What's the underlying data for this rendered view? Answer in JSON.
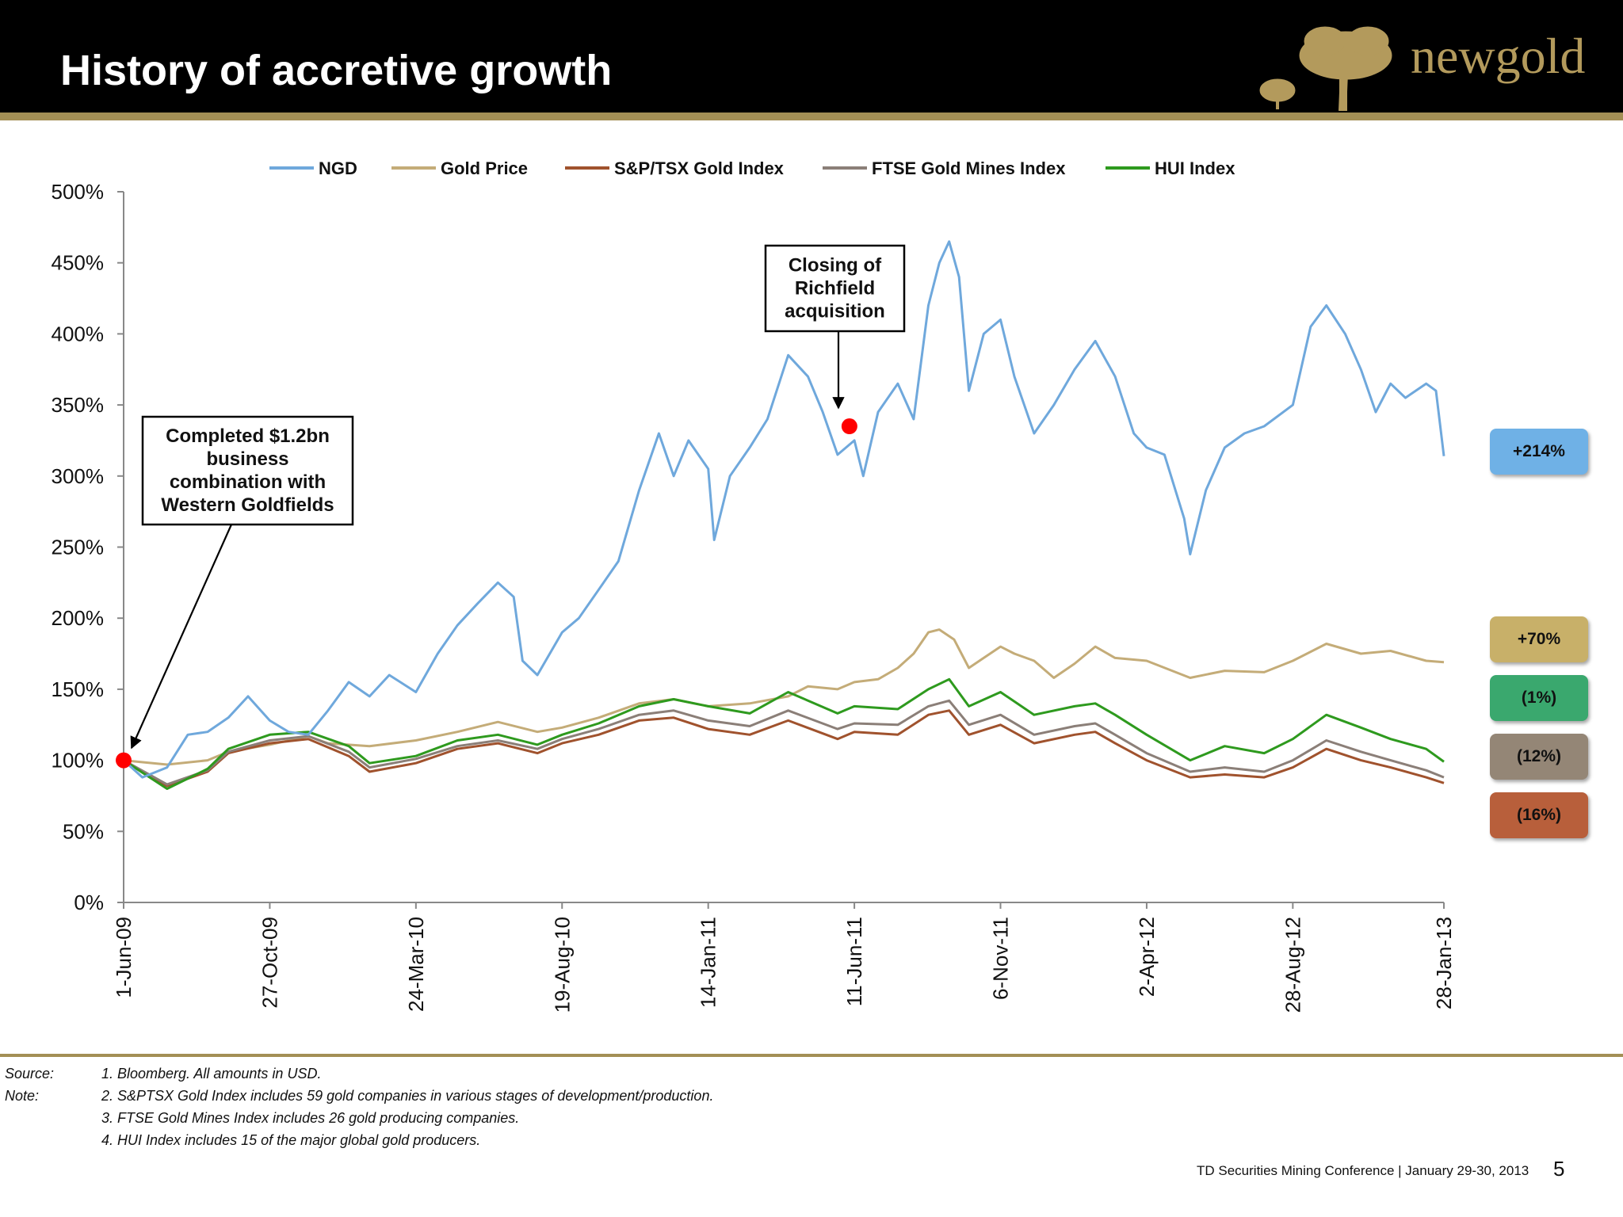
{
  "slide": {
    "title": "History of accretive growth",
    "logo_text": "newgold",
    "conference": "TD Securities Mining Conference  |  January 29-30, 2013",
    "page_number": "5"
  },
  "footnotes": {
    "source_label": "Source:",
    "note_label": "Note:",
    "items": [
      "1. Bloomberg. All amounts in USD.",
      "2. S&PTSX Gold Index includes 59 gold companies in various stages of development/production.",
      "3. FTSE Gold Mines Index includes 26 gold producing companies.",
      "4. HUI Index includes 15 of the major global gold producers."
    ]
  },
  "colors": {
    "header_bg": "#000000",
    "gold_rule": "#a38f55",
    "logo_gold": "#b39a5c"
  },
  "chart_data": {
    "type": "line",
    "ylim": [
      0,
      500
    ],
    "yticks": [
      0,
      50,
      100,
      150,
      200,
      250,
      300,
      350,
      400,
      450,
      500
    ],
    "ytick_labels": [
      "0%",
      "50%",
      "100%",
      "150%",
      "200%",
      "250%",
      "300%",
      "350%",
      "400%",
      "450%",
      "500%"
    ],
    "xlim": [
      "2009-06-01",
      "2013-01-28"
    ],
    "xticks": [
      "2009-06-01",
      "2009-10-27",
      "2010-03-24",
      "2010-08-19",
      "2011-01-14",
      "2011-06-11",
      "2011-11-06",
      "2012-04-02",
      "2012-08-28",
      "2013-01-28"
    ],
    "xtick_labels": [
      "1-Jun-09",
      "27-Oct-09",
      "24-Mar-10",
      "19-Aug-10",
      "14-Jan-11",
      "11-Jun-11",
      "6-Nov-11",
      "2-Apr-12",
      "28-Aug-12",
      "28-Jan-13"
    ],
    "legend_position": "top",
    "grid": false,
    "series": [
      {
        "name": "NGD",
        "color": "#6fa8dc",
        "points": [
          [
            "2009-06-01",
            100
          ],
          [
            "2009-06-20",
            88
          ],
          [
            "2009-07-15",
            95
          ],
          [
            "2009-08-05",
            118
          ],
          [
            "2009-08-25",
            120
          ],
          [
            "2009-09-15",
            130
          ],
          [
            "2009-10-05",
            145
          ],
          [
            "2009-10-27",
            128
          ],
          [
            "2009-11-15",
            120
          ],
          [
            "2009-12-05",
            118
          ],
          [
            "2009-12-25",
            135
          ],
          [
            "2010-01-15",
            155
          ],
          [
            "2010-02-05",
            145
          ],
          [
            "2010-02-25",
            160
          ],
          [
            "2010-03-24",
            148
          ],
          [
            "2010-04-15",
            175
          ],
          [
            "2010-05-05",
            195
          ],
          [
            "2010-05-25",
            210
          ],
          [
            "2010-06-15",
            225
          ],
          [
            "2010-07-01",
            215
          ],
          [
            "2010-07-10",
            170
          ],
          [
            "2010-07-25",
            160
          ],
          [
            "2010-08-19",
            190
          ],
          [
            "2010-09-05",
            200
          ],
          [
            "2010-09-25",
            220
          ],
          [
            "2010-10-15",
            240
          ],
          [
            "2010-11-05",
            290
          ],
          [
            "2010-11-25",
            330
          ],
          [
            "2010-12-10",
            300
          ],
          [
            "2010-12-25",
            325
          ],
          [
            "2011-01-14",
            305
          ],
          [
            "2011-01-20",
            255
          ],
          [
            "2011-02-05",
            300
          ],
          [
            "2011-02-25",
            320
          ],
          [
            "2011-03-15",
            340
          ],
          [
            "2011-04-05",
            385
          ],
          [
            "2011-04-25",
            370
          ],
          [
            "2011-05-10",
            345
          ],
          [
            "2011-05-25",
            315
          ],
          [
            "2011-06-11",
            325
          ],
          [
            "2011-06-20",
            300
          ],
          [
            "2011-07-05",
            345
          ],
          [
            "2011-07-25",
            365
          ],
          [
            "2011-08-10",
            340
          ],
          [
            "2011-08-25",
            420
          ],
          [
            "2011-09-05",
            450
          ],
          [
            "2011-09-15",
            465
          ],
          [
            "2011-09-25",
            440
          ],
          [
            "2011-10-05",
            360
          ],
          [
            "2011-10-20",
            400
          ],
          [
            "2011-11-06",
            410
          ],
          [
            "2011-11-20",
            370
          ],
          [
            "2011-12-10",
            330
          ],
          [
            "2011-12-30",
            350
          ],
          [
            "2012-01-20",
            375
          ],
          [
            "2012-02-10",
            395
          ],
          [
            "2012-03-01",
            370
          ],
          [
            "2012-03-20",
            330
          ],
          [
            "2012-04-02",
            320
          ],
          [
            "2012-04-20",
            315
          ],
          [
            "2012-05-10",
            270
          ],
          [
            "2012-05-16",
            245
          ],
          [
            "2012-06-01",
            290
          ],
          [
            "2012-06-20",
            320
          ],
          [
            "2012-07-10",
            330
          ],
          [
            "2012-07-30",
            335
          ],
          [
            "2012-08-28",
            350
          ],
          [
            "2012-09-15",
            405
          ],
          [
            "2012-10-01",
            420
          ],
          [
            "2012-10-20",
            400
          ],
          [
            "2012-11-05",
            375
          ],
          [
            "2012-11-20",
            345
          ],
          [
            "2012-12-05",
            365
          ],
          [
            "2012-12-20",
            355
          ],
          [
            "2013-01-10",
            365
          ],
          [
            "2013-01-20",
            360
          ],
          [
            "2013-01-28",
            314
          ]
        ]
      },
      {
        "name": "Gold Price",
        "color": "#c4ac78",
        "points": [
          [
            "2009-06-01",
            100
          ],
          [
            "2009-07-15",
            97
          ],
          [
            "2009-08-25",
            100
          ],
          [
            "2009-09-15",
            106
          ],
          [
            "2009-10-27",
            111
          ],
          [
            "2009-12-05",
            117
          ],
          [
            "2009-12-25",
            112
          ],
          [
            "2010-02-05",
            110
          ],
          [
            "2010-03-24",
            114
          ],
          [
            "2010-05-05",
            120
          ],
          [
            "2010-06-15",
            127
          ],
          [
            "2010-07-25",
            120
          ],
          [
            "2010-08-19",
            123
          ],
          [
            "2010-09-25",
            130
          ],
          [
            "2010-11-05",
            140
          ],
          [
            "2010-12-10",
            143
          ],
          [
            "2011-01-14",
            138
          ],
          [
            "2011-02-25",
            140
          ],
          [
            "2011-04-05",
            145
          ],
          [
            "2011-04-25",
            152
          ],
          [
            "2011-05-25",
            150
          ],
          [
            "2011-06-11",
            155
          ],
          [
            "2011-07-05",
            157
          ],
          [
            "2011-07-25",
            165
          ],
          [
            "2011-08-10",
            175
          ],
          [
            "2011-08-25",
            190
          ],
          [
            "2011-09-05",
            192
          ],
          [
            "2011-09-20",
            185
          ],
          [
            "2011-10-05",
            165
          ],
          [
            "2011-10-20",
            172
          ],
          [
            "2011-11-06",
            180
          ],
          [
            "2011-11-20",
            175
          ],
          [
            "2011-12-10",
            170
          ],
          [
            "2011-12-30",
            158
          ],
          [
            "2012-01-20",
            168
          ],
          [
            "2012-02-10",
            180
          ],
          [
            "2012-03-01",
            172
          ],
          [
            "2012-04-02",
            170
          ],
          [
            "2012-05-16",
            158
          ],
          [
            "2012-06-20",
            163
          ],
          [
            "2012-07-30",
            162
          ],
          [
            "2012-08-28",
            170
          ],
          [
            "2012-10-01",
            182
          ],
          [
            "2012-11-05",
            175
          ],
          [
            "2012-12-05",
            177
          ],
          [
            "2013-01-10",
            170
          ],
          [
            "2013-01-28",
            169
          ]
        ]
      },
      {
        "name": "S&P/TSX Gold Index",
        "color": "#a0522d",
        "points": [
          [
            "2009-06-01",
            100
          ],
          [
            "2009-07-15",
            82
          ],
          [
            "2009-08-25",
            92
          ],
          [
            "2009-09-15",
            105
          ],
          [
            "2009-10-27",
            112
          ],
          [
            "2009-12-05",
            115
          ],
          [
            "2010-01-15",
            103
          ],
          [
            "2010-02-05",
            92
          ],
          [
            "2010-03-24",
            98
          ],
          [
            "2010-05-05",
            108
          ],
          [
            "2010-06-15",
            112
          ],
          [
            "2010-07-25",
            105
          ],
          [
            "2010-08-19",
            112
          ],
          [
            "2010-09-25",
            118
          ],
          [
            "2010-11-05",
            128
          ],
          [
            "2010-12-10",
            130
          ],
          [
            "2011-01-14",
            122
          ],
          [
            "2011-02-25",
            118
          ],
          [
            "2011-04-05",
            128
          ],
          [
            "2011-05-25",
            115
          ],
          [
            "2011-06-11",
            120
          ],
          [
            "2011-07-25",
            118
          ],
          [
            "2011-08-25",
            132
          ],
          [
            "2011-09-15",
            135
          ],
          [
            "2011-10-05",
            118
          ],
          [
            "2011-11-06",
            125
          ],
          [
            "2011-12-10",
            112
          ],
          [
            "2012-01-20",
            118
          ],
          [
            "2012-02-10",
            120
          ],
          [
            "2012-03-01",
            112
          ],
          [
            "2012-04-02",
            100
          ],
          [
            "2012-05-16",
            88
          ],
          [
            "2012-06-20",
            90
          ],
          [
            "2012-07-30",
            88
          ],
          [
            "2012-08-28",
            95
          ],
          [
            "2012-10-01",
            108
          ],
          [
            "2012-11-05",
            100
          ],
          [
            "2012-12-05",
            95
          ],
          [
            "2013-01-10",
            88
          ],
          [
            "2013-01-28",
            84
          ]
        ]
      },
      {
        "name": "FTSE Gold Mines Index",
        "color": "#8b7f78",
        "points": [
          [
            "2009-06-01",
            100
          ],
          [
            "2009-07-15",
            83
          ],
          [
            "2009-08-25",
            93
          ],
          [
            "2009-09-15",
            106
          ],
          [
            "2009-10-27",
            114
          ],
          [
            "2009-12-05",
            117
          ],
          [
            "2010-01-15",
            106
          ],
          [
            "2010-02-05",
            95
          ],
          [
            "2010-03-24",
            101
          ],
          [
            "2010-05-05",
            110
          ],
          [
            "2010-06-15",
            114
          ],
          [
            "2010-07-25",
            108
          ],
          [
            "2010-08-19",
            115
          ],
          [
            "2010-09-25",
            122
          ],
          [
            "2010-11-05",
            132
          ],
          [
            "2010-12-10",
            135
          ],
          [
            "2011-01-14",
            128
          ],
          [
            "2011-02-25",
            124
          ],
          [
            "2011-04-05",
            135
          ],
          [
            "2011-05-25",
            122
          ],
          [
            "2011-06-11",
            126
          ],
          [
            "2011-07-25",
            125
          ],
          [
            "2011-08-25",
            138
          ],
          [
            "2011-09-15",
            142
          ],
          [
            "2011-10-05",
            125
          ],
          [
            "2011-11-06",
            132
          ],
          [
            "2011-12-10",
            118
          ],
          [
            "2012-01-20",
            124
          ],
          [
            "2012-02-10",
            126
          ],
          [
            "2012-03-01",
            118
          ],
          [
            "2012-04-02",
            105
          ],
          [
            "2012-05-16",
            92
          ],
          [
            "2012-06-20",
            95
          ],
          [
            "2012-07-30",
            92
          ],
          [
            "2012-08-28",
            100
          ],
          [
            "2012-10-01",
            114
          ],
          [
            "2012-11-05",
            106
          ],
          [
            "2012-12-05",
            100
          ],
          [
            "2013-01-10",
            93
          ],
          [
            "2013-01-28",
            88
          ]
        ]
      },
      {
        "name": "HUI Index",
        "color": "#2e9a1e",
        "points": [
          [
            "2009-06-01",
            100
          ],
          [
            "2009-07-15",
            80
          ],
          [
            "2009-08-25",
            94
          ],
          [
            "2009-09-15",
            108
          ],
          [
            "2009-10-27",
            118
          ],
          [
            "2009-12-05",
            120
          ],
          [
            "2010-01-15",
            110
          ],
          [
            "2010-02-05",
            98
          ],
          [
            "2010-03-24",
            103
          ],
          [
            "2010-05-05",
            114
          ],
          [
            "2010-06-15",
            118
          ],
          [
            "2010-07-25",
            111
          ],
          [
            "2010-08-19",
            118
          ],
          [
            "2010-09-25",
            126
          ],
          [
            "2010-11-05",
            138
          ],
          [
            "2010-12-10",
            143
          ],
          [
            "2011-01-14",
            138
          ],
          [
            "2011-02-25",
            133
          ],
          [
            "2011-04-05",
            148
          ],
          [
            "2011-05-25",
            133
          ],
          [
            "2011-06-11",
            138
          ],
          [
            "2011-07-25",
            136
          ],
          [
            "2011-08-25",
            150
          ],
          [
            "2011-09-15",
            157
          ],
          [
            "2011-10-05",
            138
          ],
          [
            "2011-11-06",
            148
          ],
          [
            "2011-12-10",
            132
          ],
          [
            "2012-01-20",
            138
          ],
          [
            "2012-02-10",
            140
          ],
          [
            "2012-03-01",
            132
          ],
          [
            "2012-04-02",
            118
          ],
          [
            "2012-05-16",
            100
          ],
          [
            "2012-06-20",
            110
          ],
          [
            "2012-07-30",
            105
          ],
          [
            "2012-08-28",
            115
          ],
          [
            "2012-10-01",
            132
          ],
          [
            "2012-11-05",
            123
          ],
          [
            "2012-12-05",
            115
          ],
          [
            "2013-01-10",
            108
          ],
          [
            "2013-01-28",
            99
          ]
        ]
      }
    ],
    "annotations": [
      {
        "text": [
          "Completed $1.2bn",
          "business",
          "combination with",
          "Western Goldfields"
        ],
        "date": "2009-06-01",
        "value": 100
      },
      {
        "text": [
          "Closing of",
          "Richfield",
          "acquisition"
        ],
        "date": "2011-06-06",
        "value": 335
      }
    ],
    "end_labels": [
      {
        "series": "NGD",
        "text": "+214%",
        "color": "#6fb1e6"
      },
      {
        "series": "Gold Price",
        "text": "+70%",
        "color": "#c8b069"
      },
      {
        "series": "HUI Index",
        "text": "(1%)",
        "color": "#3aa86e"
      },
      {
        "series": "FTSE Gold Mines Index",
        "text": "(12%)",
        "color": "#948676"
      },
      {
        "series": "S&P/TSX Gold Index",
        "text": "(16%)",
        "color": "#b85f3b"
      }
    ]
  }
}
